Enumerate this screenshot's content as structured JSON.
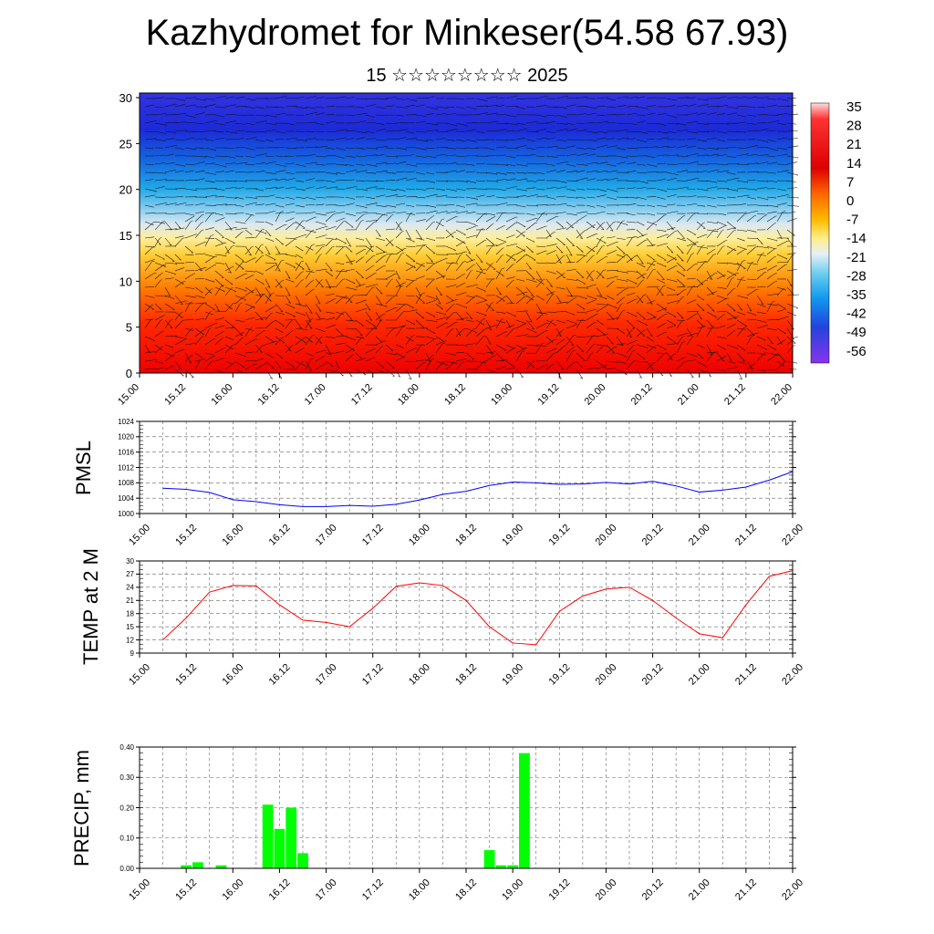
{
  "title": "Kazhydromet for Minkeser(54.58 67.93)",
  "subtitle": "15 ☆☆☆☆☆☆☆☆ 2025",
  "x_ticks": [
    "15.00",
    "15.12",
    "16.00",
    "16.12",
    "17.00",
    "17.12",
    "18.00",
    "18.12",
    "19.00",
    "19.12",
    "20.00",
    "20.12",
    "21.00",
    "21.12",
    "22.00"
  ],
  "colors": {
    "pmsl": "#0000ff",
    "temp": "#ff0000",
    "precip": "#00ff00"
  },
  "chart_data": [
    {
      "type": "heatmap",
      "name_hint": "cross-section",
      "title": "",
      "y_ticks": [
        "0",
        "5",
        "10",
        "15",
        "20",
        "25",
        "30"
      ],
      "ylim": [
        0,
        30.5
      ],
      "x_range_hours": [
        0,
        168
      ],
      "colorbar_labels": [
        "35",
        "28",
        "21",
        "14",
        "7",
        "0",
        "-7",
        "-14",
        "-21",
        "-28",
        "-35",
        "-42",
        "-49",
        "-56"
      ],
      "wind_barbs": true
    },
    {
      "type": "line",
      "ylabel": "PMSL",
      "ylim": [
        1000,
        1024
      ],
      "y_ticks": [
        "1000",
        "1004",
        "1008",
        "1012",
        "1016",
        "1020",
        "1024"
      ],
      "x_hours": [
        0,
        6,
        12,
        18,
        24,
        30,
        36,
        42,
        48,
        54,
        60,
        66,
        72,
        78,
        84,
        90,
        96,
        102,
        108,
        114,
        120,
        126,
        132,
        138,
        144,
        150,
        156,
        162
      ],
      "values": [
        1006.6,
        1006.3,
        1005.5,
        1003.6,
        1003.1,
        1002.3,
        1001.8,
        1001.8,
        1002.1,
        1001.9,
        1002.4,
        1003.5,
        1005.0,
        1005.8,
        1007.3,
        1008.2,
        1008.0,
        1007.6,
        1007.7,
        1008.1,
        1007.7,
        1008.4,
        1007.2,
        1005.6,
        1006.1,
        1006.9,
        1008.7,
        1010.9
      ]
    },
    {
      "type": "line",
      "ylabel": "TEMP at 2 M",
      "ylim": [
        9,
        30
      ],
      "y_ticks": [
        "9",
        "12",
        "15",
        "18",
        "21",
        "24",
        "27",
        "30"
      ],
      "x_hours": [
        0,
        6,
        12,
        18,
        24,
        30,
        36,
        42,
        48,
        54,
        60,
        66,
        72,
        78,
        84,
        90,
        96,
        102,
        108,
        114,
        120,
        126,
        132,
        138,
        144,
        150,
        156,
        162
      ],
      "values": [
        12.0,
        17.0,
        22.9,
        24.4,
        24.3,
        20.0,
        16.5,
        16.0,
        15.0,
        19.2,
        24.2,
        25.0,
        24.4,
        21.0,
        15.0,
        11.3,
        10.9,
        18.5,
        22.0,
        23.6,
        24.0,
        21.0,
        17.0,
        13.4,
        12.5,
        20.0,
        26.5,
        27.8
      ]
    },
    {
      "type": "bar",
      "ylabel": "PRECIP, mm",
      "ylim": [
        0,
        0.4
      ],
      "y_ticks": [
        "0.00",
        "0.10",
        "0.20",
        "0.30",
        "0.40"
      ],
      "x_hours": [
        6,
        9,
        15,
        27,
        30,
        33,
        36,
        84,
        87,
        90,
        93,
        162,
        165,
        168
      ],
      "values": [
        0.01,
        0.02,
        0.01,
        0.21,
        0.13,
        0.2,
        0.05,
        0.06,
        0.01,
        0.01,
        0.38,
        0.0,
        0.0,
        0.0
      ]
    }
  ]
}
